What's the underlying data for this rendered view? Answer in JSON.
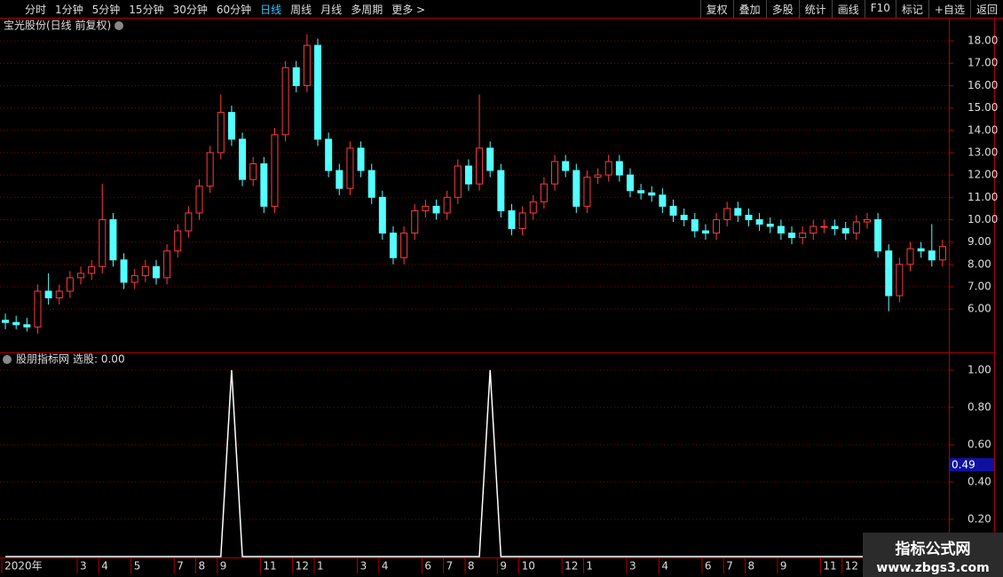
{
  "toolbar": {
    "periods": [
      "分时",
      "1分钟",
      "5分钟",
      "15分钟",
      "30分钟",
      "60分钟",
      "日线",
      "周线",
      "月线",
      "多周期",
      "更多 >"
    ],
    "active_index": 6,
    "actions": [
      "复权",
      "叠加",
      "多股",
      "统计",
      "画线",
      "F10",
      "标记",
      "+自选",
      "返回"
    ]
  },
  "chart_data": [
    {
      "type": "candlestick",
      "title": "宝光股份(日线 前复权)",
      "up_color": "#ff3c3c",
      "down_color": "#54ffff",
      "ylim": [
        4.1,
        18.4
      ],
      "yticks": [
        {
          "value": 6,
          "label": "6.00"
        },
        {
          "value": 7,
          "label": "7.00"
        },
        {
          "value": 8,
          "label": "8.00"
        },
        {
          "value": 9,
          "label": "9.00"
        },
        {
          "value": 10,
          "label": "10.00"
        },
        {
          "value": 11,
          "label": "11.00"
        },
        {
          "value": 12,
          "label": "12.00"
        },
        {
          "value": 13,
          "label": "13.00"
        },
        {
          "value": 14,
          "label": "14.00"
        },
        {
          "value": 15,
          "label": "15.00"
        },
        {
          "value": 16,
          "label": "16.00"
        },
        {
          "value": 17,
          "label": "17.00"
        },
        {
          "value": 18,
          "label": "18.00"
        }
      ],
      "grid": true,
      "open": [
        5.5,
        5.4,
        5.3,
        5.2,
        6.8,
        6.5,
        6.8,
        7.4,
        7.6,
        7.9,
        10.0,
        8.2,
        7.2,
        7.5,
        7.9,
        7.4,
        8.6,
        9.5,
        10.3,
        11.5,
        13.0,
        14.8,
        13.6,
        11.8,
        12.5,
        10.6,
        13.8,
        16.8,
        16.0,
        17.8,
        13.6,
        12.2,
        11.4,
        13.2,
        12.2,
        11.0,
        9.4,
        8.3,
        9.4,
        10.4,
        10.6,
        10.3,
        11.0,
        12.4,
        11.6,
        13.2,
        12.2,
        10.4,
        9.6,
        10.3,
        10.8,
        11.6,
        12.6,
        12.2,
        10.6,
        11.9,
        12.0,
        12.6,
        12.0,
        11.3,
        11.2,
        11.1,
        10.6,
        10.2,
        10.0,
        9.5,
        9.4,
        10.0,
        10.5,
        10.2,
        10.0,
        9.8,
        9.7,
        9.4,
        9.2,
        9.4,
        9.7,
        9.7,
        9.6,
        9.4,
        9.9,
        10.0,
        8.6,
        6.6,
        8.0,
        8.7,
        8.6,
        8.2
      ],
      "high": [
        5.8,
        5.7,
        5.6,
        7.1,
        7.6,
        7.1,
        7.7,
        7.9,
        8.2,
        11.6,
        10.3,
        8.5,
        7.8,
        8.2,
        8.2,
        8.9,
        9.8,
        10.6,
        11.8,
        13.3,
        15.6,
        15.1,
        13.9,
        12.8,
        12.8,
        14.1,
        17.1,
        17.1,
        18.3,
        18.1,
        13.9,
        12.5,
        13.5,
        13.5,
        12.5,
        11.3,
        9.7,
        9.7,
        10.7,
        10.9,
        10.9,
        11.3,
        12.7,
        12.7,
        15.6,
        13.5,
        12.5,
        10.7,
        10.6,
        11.1,
        11.9,
        12.9,
        12.9,
        12.5,
        12.2,
        12.3,
        12.9,
        12.9,
        12.3,
        11.6,
        11.5,
        11.4,
        10.9,
        10.5,
        10.3,
        9.8,
        10.3,
        10.8,
        10.8,
        10.5,
        10.3,
        10.1,
        10.0,
        9.7,
        9.7,
        10.0,
        10.0,
        10.0,
        9.9,
        10.2,
        10.3,
        10.3,
        8.9,
        8.3,
        9.0,
        9.0,
        9.8,
        9.1
      ],
      "low": [
        5.1,
        5.1,
        5.0,
        4.9,
        6.2,
        6.2,
        6.5,
        7.1,
        7.3,
        7.6,
        7.9,
        6.9,
        6.9,
        7.2,
        7.1,
        7.1,
        8.3,
        9.2,
        10.0,
        11.2,
        12.7,
        13.3,
        11.5,
        11.5,
        10.3,
        10.3,
        13.5,
        15.7,
        15.7,
        13.3,
        11.9,
        11.1,
        11.1,
        11.9,
        10.7,
        9.1,
        8.0,
        8.0,
        9.1,
        10.1,
        10.0,
        10.0,
        10.7,
        11.3,
        11.3,
        11.9,
        10.1,
        9.3,
        9.3,
        10.0,
        10.5,
        11.3,
        11.9,
        10.3,
        10.3,
        11.6,
        11.7,
        11.7,
        11.0,
        10.9,
        10.8,
        10.3,
        9.9,
        9.7,
        9.2,
        9.1,
        9.1,
        9.7,
        9.9,
        9.7,
        9.5,
        9.4,
        9.1,
        8.9,
        8.9,
        9.1,
        9.4,
        9.3,
        9.1,
        9.1,
        9.6,
        8.3,
        5.9,
        6.3,
        7.7,
        8.3,
        7.9,
        7.9
      ],
      "close": [
        5.4,
        5.3,
        5.2,
        6.8,
        6.5,
        6.8,
        7.4,
        7.6,
        7.9,
        10.0,
        8.2,
        7.2,
        7.5,
        7.9,
        7.4,
        8.6,
        9.5,
        10.3,
        11.5,
        13.0,
        14.8,
        13.6,
        11.8,
        12.5,
        10.6,
        13.8,
        16.8,
        16.0,
        17.8,
        13.6,
        12.2,
        11.4,
        13.2,
        12.2,
        11.0,
        9.4,
        8.3,
        9.4,
        10.4,
        10.6,
        10.3,
        11.0,
        12.4,
        11.6,
        13.2,
        12.2,
        10.4,
        9.6,
        10.3,
        10.8,
        11.6,
        12.6,
        12.2,
        10.6,
        11.9,
        12.0,
        12.6,
        12.0,
        11.3,
        11.2,
        11.1,
        10.6,
        10.2,
        10.0,
        9.5,
        9.4,
        10.0,
        10.5,
        10.2,
        10.0,
        9.8,
        9.7,
        9.4,
        9.2,
        9.4,
        9.7,
        9.7,
        9.6,
        9.4,
        9.9,
        10.0,
        8.6,
        6.6,
        8.0,
        8.7,
        8.6,
        8.2,
        8.8
      ]
    },
    {
      "type": "line",
      "title": "股朋指标网",
      "subtitle": "选股: 0.00",
      "color": "#ffffff",
      "ylim": [
        0,
        1.09
      ],
      "yticks": [
        {
          "value": 0.2,
          "label": "0.20"
        },
        {
          "value": 0.4,
          "label": "0.40"
        },
        {
          "value": 0.6,
          "label": "0.60"
        },
        {
          "value": 0.8,
          "label": "0.80"
        },
        {
          "value": 1,
          "label": "1.00"
        }
      ],
      "grid": true,
      "cursor_label": 0.49,
      "categories": [
        "2020年",
        null,
        null,
        null,
        null,
        null,
        null,
        "3",
        null,
        "4",
        null,
        null,
        "5",
        null,
        null,
        null,
        "7",
        null,
        "8",
        null,
        "9",
        null,
        null,
        null,
        "11",
        null,
        null,
        "12",
        null,
        "1",
        null,
        null,
        null,
        "3",
        null,
        "4",
        null,
        null,
        null,
        "6",
        null,
        "7",
        null,
        "8",
        null,
        null,
        "9",
        null,
        "10",
        null,
        null,
        null,
        "12",
        null,
        "1",
        null,
        null,
        null,
        "3",
        null,
        null,
        "4",
        null,
        null,
        null,
        "6",
        null,
        "7",
        null,
        "8",
        null,
        null,
        "9",
        null,
        null,
        null,
        "11",
        null,
        "12",
        null,
        "1",
        null,
        null,
        null,
        null,
        null,
        null,
        null
      ],
      "values": [
        0,
        0,
        0,
        0,
        0,
        0,
        0,
        0,
        0,
        0,
        0,
        0,
        0,
        0,
        0,
        0,
        0,
        0,
        0,
        0,
        0,
        1,
        0,
        0,
        0,
        0,
        0,
        0,
        0,
        0,
        0,
        0,
        0,
        0,
        0,
        0,
        0,
        0,
        0,
        0,
        0,
        0,
        0,
        0,
        0,
        1,
        0,
        0,
        0,
        0,
        0,
        0,
        0,
        0,
        0,
        0,
        0,
        0,
        0,
        0,
        0,
        0,
        0,
        0,
        0,
        0,
        0,
        0,
        0,
        0,
        0,
        0,
        0,
        0,
        0,
        0,
        0,
        0,
        0,
        0,
        0,
        0,
        0,
        0,
        0,
        0,
        0,
        0
      ]
    }
  ],
  "watermark": {
    "title": "指标公式网",
    "url": "www.zbgs3.com"
  }
}
